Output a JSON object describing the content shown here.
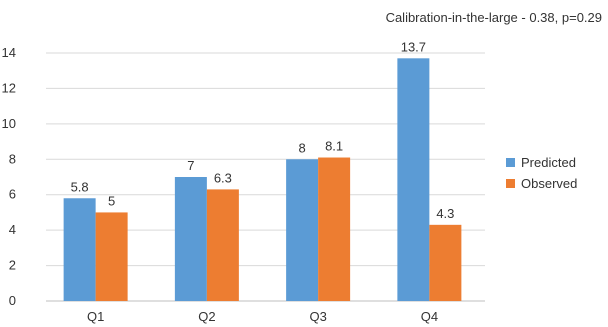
{
  "chart_data": {
    "type": "bar",
    "title": "",
    "subtitle": "Calibration-in-the-large - 0.38, p=0.29",
    "categories": [
      "Q1",
      "Q2",
      "Q3",
      "Q4"
    ],
    "series": [
      {
        "name": "Predicted",
        "values": [
          5.8,
          7,
          8,
          13.7
        ],
        "labels": [
          "5.8",
          "7",
          "8",
          "13.7"
        ],
        "color": "#5b9bd5"
      },
      {
        "name": "Observed",
        "values": [
          5,
          6.3,
          8.1,
          4.3
        ],
        "labels": [
          "5",
          "6.3",
          "8.1",
          "4.3"
        ],
        "color": "#ed7d31"
      }
    ],
    "yticks": [
      "0",
      "2",
      "4",
      "6",
      "8",
      "10",
      "12",
      "14"
    ],
    "ylim": [
      0,
      14
    ],
    "grid": true,
    "legend_position": "right",
    "xlabel": "",
    "ylabel": ""
  }
}
